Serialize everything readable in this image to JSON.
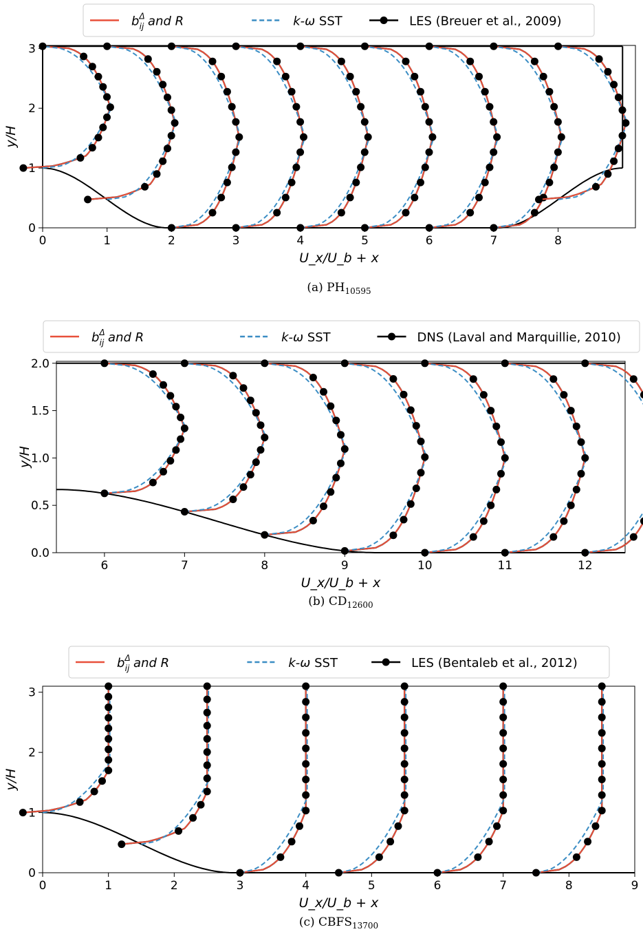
{
  "colors": {
    "model": "#e8503a",
    "sst": "#3b8dc4",
    "ref": "#000000"
  },
  "chart_data": [
    {
      "type": "line",
      "caption_prefix": "(a) PH",
      "caption_sub": "10595",
      "xlabel": "U_x/U_b + x",
      "ylabel": "y/H",
      "xlim": [
        0,
        9.2
      ],
      "ylim": [
        0,
        3.05
      ],
      "xticks": [
        0,
        1,
        2,
        3,
        4,
        5,
        6,
        7,
        8
      ],
      "yticks": [
        0,
        1,
        2,
        3
      ],
      "legend": {
        "model": "and R",
        "sst": "SST",
        "ref": "LES (Breuer et al., 2009)"
      },
      "stations": [
        0,
        1,
        2,
        3,
        4,
        5,
        6,
        7,
        8
      ],
      "hill_profile": [
        [
          0,
          1.0
        ],
        [
          0.5,
          0.94
        ],
        [
          1.0,
          0.6
        ],
        [
          1.5,
          0.22
        ],
        [
          1.93,
          0
        ],
        [
          7.07,
          0
        ],
        [
          7.5,
          0.22
        ],
        [
          8.0,
          0.6
        ],
        [
          8.5,
          0.94
        ],
        [
          9.0,
          1.0
        ]
      ],
      "top_wall": 3.036,
      "domain_xmax": 9.0,
      "series": [
        {
          "name": "model",
          "profiles": [
            [
              [
                1.03,
                1.0
              ],
              [
                0.72,
                1.04
              ],
              [
                0.55,
                1.05
              ],
              [
                0.3,
                1.04
              ],
              [
                0,
                1.02
              ]
            ],
            [
              [
                1.0,
                0.5
              ],
              [
                0.9,
                0.56
              ],
              [
                0.88,
                0.62
              ]
            ]
          ]
        }
      ]
    },
    {
      "type": "line",
      "caption_prefix": "(b) CD",
      "caption_sub": "12600",
      "xlabel": "U_x/U_b + x",
      "ylabel": "y/H",
      "xlim": [
        5.4,
        12.5
      ],
      "ylim": [
        0,
        2.02
      ],
      "xticks": [
        6,
        7,
        8,
        9,
        10,
        11,
        12
      ],
      "yticks": [
        0.0,
        0.5,
        1.0,
        1.5,
        2.0
      ],
      "ytick_labels": [
        "0.0",
        "0.5",
        "1.0",
        "1.5",
        "2.0"
      ],
      "legend": {
        "model": "and R",
        "sst": "SST",
        "ref": "DNS (Laval and Marquillie, 2010)"
      },
      "stations": [
        6,
        7,
        8,
        9,
        10,
        11,
        12
      ],
      "top_wall": 2.0
    },
    {
      "type": "line",
      "caption_prefix": "(c) CBFS",
      "caption_sub": "13700",
      "xlabel": "U_x/U_b + x",
      "ylabel": "y/H",
      "xlim": [
        0,
        9
      ],
      "ylim": [
        0,
        3.1
      ],
      "xticks": [
        0,
        1,
        2,
        3,
        4,
        5,
        6,
        7,
        8,
        9
      ],
      "yticks": [
        0,
        1,
        2,
        3
      ],
      "legend": {
        "model": "and R",
        "sst": "SST",
        "ref": "LES (Bentaleb et al., 2012)"
      },
      "stations": [
        0,
        1.5,
        3,
        4.5,
        6,
        7.5
      ]
    }
  ],
  "legend_common": {
    "model_symbol": "b",
    "model_sub": "ij",
    "model_sup": "Δ",
    "sst_prefix": "k-ω"
  }
}
